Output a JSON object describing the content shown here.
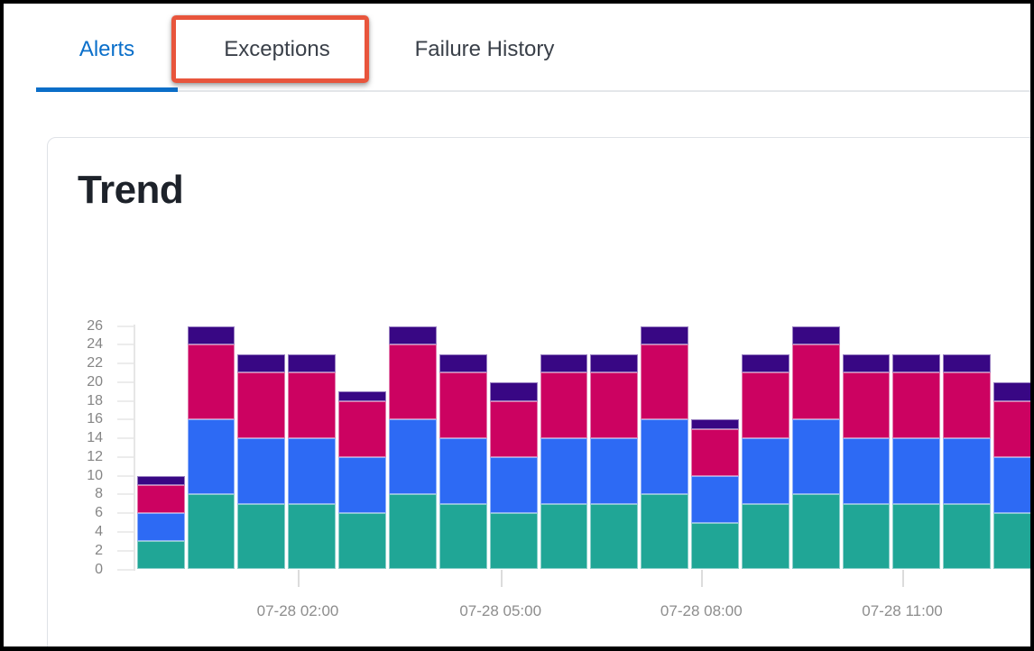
{
  "tabs": {
    "items": [
      {
        "id": "alerts",
        "label": "Alerts",
        "active": true,
        "highlighted": false
      },
      {
        "id": "exceptions",
        "label": "Exceptions",
        "active": false,
        "highlighted": true
      },
      {
        "id": "failure-history",
        "label": "Failure History",
        "active": false,
        "highlighted": false
      }
    ],
    "active_color": "#0a6fca",
    "inactive_color": "#3a4049",
    "underline_color": "#0b6ec8",
    "highlight_box_color": "#e8553c"
  },
  "card": {
    "title": "Trend"
  },
  "chart_data": {
    "type": "bar",
    "stacked": true,
    "title": "Trend",
    "xlabel": "",
    "ylabel": "",
    "ylim": [
      0,
      26
    ],
    "y_ticks": [
      0,
      2,
      4,
      6,
      8,
      10,
      12,
      14,
      16,
      18,
      20,
      22,
      24,
      26
    ],
    "x_tick_labels": [
      "07-28 02:00",
      "07-28 05:00",
      "07-28 08:00",
      "07-28 11:00"
    ],
    "bar_count": 18,
    "grid": false,
    "legend_position": "none",
    "series": [
      {
        "name": "teal",
        "color": "#20a696",
        "values": [
          3,
          8,
          7,
          7,
          6,
          8,
          7,
          6,
          7,
          7,
          8,
          5,
          7,
          8,
          7,
          7,
          7,
          6
        ]
      },
      {
        "name": "blue",
        "color": "#2d6af4",
        "values": [
          3,
          8,
          7,
          7,
          6,
          8,
          7,
          6,
          7,
          7,
          8,
          5,
          7,
          8,
          7,
          7,
          7,
          6
        ]
      },
      {
        "name": "magenta",
        "color": "#cc0261",
        "values": [
          3,
          8,
          7,
          7,
          6,
          8,
          7,
          6,
          7,
          7,
          8,
          5,
          7,
          8,
          7,
          7,
          7,
          6
        ]
      },
      {
        "name": "purple",
        "color": "#380784",
        "values": [
          1,
          2,
          2,
          2,
          1,
          2,
          2,
          2,
          2,
          2,
          2,
          1,
          2,
          2,
          2,
          2,
          2,
          2
        ]
      }
    ],
    "totals": [
      10,
      26,
      23,
      23,
      19,
      26,
      23,
      20,
      23,
      23,
      26,
      16,
      23,
      26,
      23,
      23,
      23,
      20
    ]
  }
}
